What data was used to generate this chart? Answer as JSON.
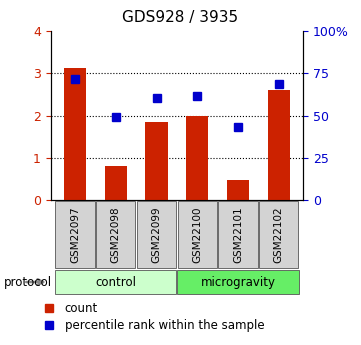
{
  "title": "GDS928 / 3935",
  "categories": [
    "GSM22097",
    "GSM22098",
    "GSM22099",
    "GSM22100",
    "GSM22101",
    "GSM22102"
  ],
  "bar_values": [
    3.12,
    0.8,
    1.85,
    2.0,
    0.48,
    2.6
  ],
  "dot_values_pct": [
    71.5,
    49.2,
    60.5,
    61.5,
    43.2,
    68.5
  ],
  "bar_color": "#cc2200",
  "dot_color": "#0000cc",
  "ylim_left": [
    0,
    4
  ],
  "ylim_right": [
    0,
    100
  ],
  "yticks_left": [
    0,
    1,
    2,
    3,
    4
  ],
  "yticks_right": [
    0,
    25,
    50,
    75,
    100
  ],
  "ytick_labels_right": [
    "0",
    "25",
    "50",
    "75",
    "100%"
  ],
  "groups": [
    {
      "label": "control",
      "start": 0,
      "end": 3,
      "color": "#ccffcc"
    },
    {
      "label": "microgravity",
      "start": 3,
      "end": 6,
      "color": "#66ee66"
    }
  ],
  "legend_items": [
    {
      "label": "count",
      "color": "#cc2200"
    },
    {
      "label": "percentile rank within the sample",
      "color": "#0000cc"
    }
  ],
  "tick_label_color_left": "#cc2200",
  "tick_label_color_right": "#0000cc"
}
